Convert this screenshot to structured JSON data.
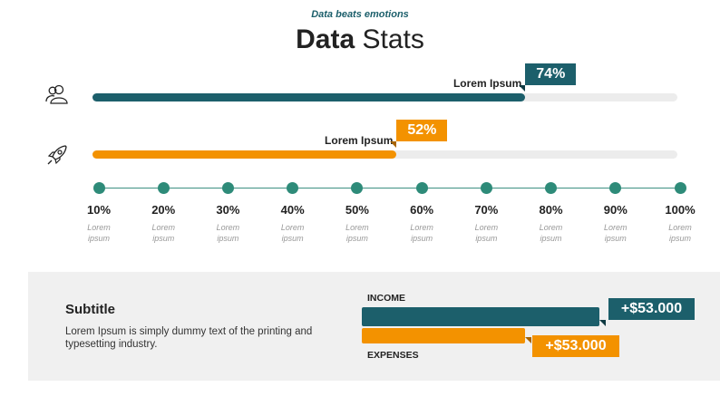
{
  "header": {
    "tagline": "Data beats emotions",
    "title_bold": "Data",
    "title_rest": " Stats"
  },
  "bars": [
    {
      "icon": "users-icon",
      "label": "Lorem Ipsum",
      "percent_text": "74%",
      "value": 74,
      "color": "#1c5f6b"
    },
    {
      "icon": "rocket-icon",
      "label": "Lorem Ipsum",
      "percent_text": "52%",
      "value": 52,
      "color": "#f39200"
    }
  ],
  "scale": {
    "ticks": [
      {
        "label": "10%",
        "sub1": "Lorem",
        "sub2": "ipsum"
      },
      {
        "label": "20%",
        "sub1": "Lorem",
        "sub2": "ipsum"
      },
      {
        "label": "30%",
        "sub1": "Lorem",
        "sub2": "ipsum"
      },
      {
        "label": "40%",
        "sub1": "Lorem",
        "sub2": "ipsum"
      },
      {
        "label": "50%",
        "sub1": "Lorem",
        "sub2": "ipsum"
      },
      {
        "label": "60%",
        "sub1": "Lorem",
        "sub2": "ipsum"
      },
      {
        "label": "70%",
        "sub1": "Lorem",
        "sub2": "ipsum"
      },
      {
        "label": "80%",
        "sub1": "Lorem",
        "sub2": "ipsum"
      },
      {
        "label": "90%",
        "sub1": "Lorem",
        "sub2": "ipsum"
      },
      {
        "label": "100%",
        "sub1": "Lorem",
        "sub2": "ipsum"
      }
    ]
  },
  "summary": {
    "subtitle": "Subtitle",
    "description": "Lorem Ipsum is simply dummy text of the printing and typesetting industry.",
    "income_label": "INCOME",
    "income_value": "+$53.000",
    "expenses_label": "EXPENSES",
    "expenses_value": "+$53.000"
  },
  "colors": {
    "teal": "#1c5f6b",
    "orange": "#f39200",
    "dot": "#2e8b79",
    "track": "#ececec",
    "panel": "#f0f0f0"
  }
}
